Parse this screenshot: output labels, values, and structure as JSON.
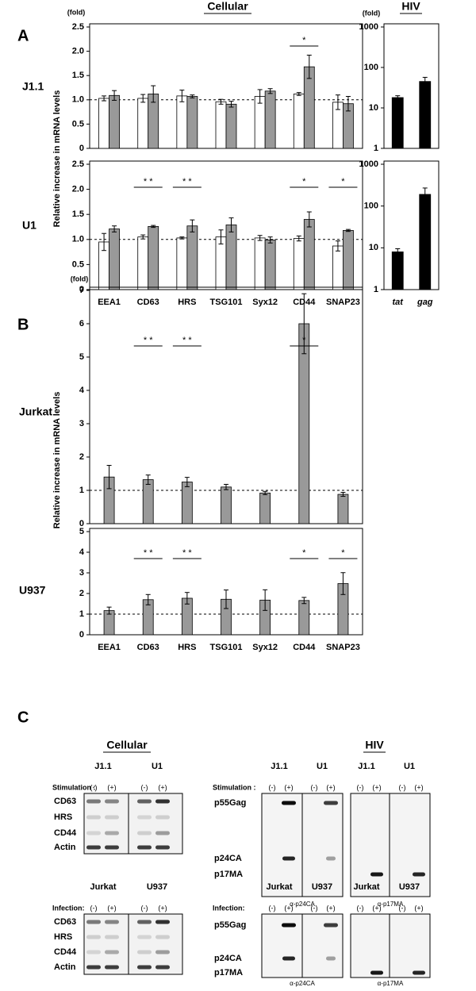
{
  "headers": {
    "cellular": "Cellular",
    "hiv": "HIV"
  },
  "panel_a": {
    "letter": "A",
    "ylabel": "Relative increase in mRNA levels"
  },
  "panel_b": {
    "letter": "B",
    "ylabel": "Relative increase in mRNA levels"
  },
  "chart_data": [
    {
      "type": "bar",
      "row_label": "J1.1",
      "y_unit": "(fold)",
      "categories": [
        null,
        null,
        null,
        null,
        null,
        null,
        null
      ],
      "series": [
        {
          "color": "#ffffff",
          "values": [
            1.03,
            1.03,
            1.08,
            0.96,
            1.07,
            1.12,
            0.95
          ],
          "errors": [
            0.05,
            0.08,
            0.12,
            0.05,
            0.14,
            0.03,
            0.15
          ]
        },
        {
          "color": "#999999",
          "values": [
            1.09,
            1.12,
            1.07,
            0.91,
            1.18,
            1.68,
            0.92
          ],
          "errors": [
            0.1,
            0.17,
            0.03,
            0.06,
            0.05,
            0.24,
            0.15
          ]
        }
      ],
      "ylim": [
        0,
        2.5
      ],
      "yticks": [
        0,
        0.5,
        {
          "value": 1,
          "label": "1.0"
        },
        1.5,
        {
          "value": 2,
          "label": "2.0"
        },
        2.5
      ],
      "reference_line": 1,
      "significance": [
        null,
        null,
        null,
        null,
        null,
        "*",
        null
      ]
    },
    {
      "type": "bar",
      "log_scale": true,
      "y_unit": "(fold)",
      "categories": [
        null,
        null
      ],
      "series": [
        {
          "color": "#000000",
          "values": [
            18,
            45
          ],
          "errors": [
            2,
            12
          ]
        }
      ],
      "ylim": [
        1,
        1000
      ],
      "yticks": [
        1,
        10,
        100,
        1000
      ]
    },
    {
      "type": "bar",
      "row_label": "U1",
      "categories": [
        "EEA1",
        "CD63",
        "HRS",
        "TSG101",
        "Syx12",
        "CD44",
        "SNAP23"
      ],
      "series": [
        {
          "color": "#ffffff",
          "values": [
            0.95,
            1.05,
            1.03,
            1.05,
            1.03,
            1.02,
            0.87
          ],
          "errors": [
            0.17,
            0.04,
            0.02,
            0.14,
            0.05,
            0.05,
            0.1
          ]
        },
        {
          "color": "#999999",
          "values": [
            1.21,
            1.26,
            1.27,
            1.29,
            0.99,
            1.4,
            1.18
          ],
          "errors": [
            0.06,
            0.02,
            0.12,
            0.14,
            0.06,
            0.15,
            0.02
          ]
        }
      ],
      "ylim": [
        0,
        2.5
      ],
      "yticks": [
        0,
        0.5,
        {
          "value": 1,
          "label": "1.0"
        },
        1.5,
        {
          "value": 2,
          "label": "2.0"
        },
        2.5
      ],
      "reference_line": 1,
      "significance": [
        null,
        "* *",
        "* *",
        null,
        null,
        "*",
        "*"
      ]
    },
    {
      "type": "bar",
      "log_scale": true,
      "categories": [
        "tat",
        "gag"
      ],
      "series": [
        {
          "color": "#000000",
          "values": [
            8,
            190
          ],
          "errors": [
            1.5,
            80
          ]
        }
      ],
      "ylim": [
        1,
        1000
      ],
      "yticks": [
        1,
        10,
        100,
        1000
      ]
    },
    {
      "type": "bar",
      "row_label": "Jurkat",
      "y_unit": "(fold)",
      "categories": [
        null,
        null,
        null,
        null,
        null,
        null,
        null
      ],
      "series": [
        {
          "color": "#999999",
          "values": [
            1.4,
            1.32,
            1.25,
            1.1,
            0.92,
            6.0,
            0.88
          ],
          "errors": [
            0.35,
            0.14,
            0.14,
            0.08,
            0.05,
            0.9,
            0.06
          ]
        }
      ],
      "ylim": [
        0,
        7
      ],
      "yticks": [
        0,
        1,
        2,
        3,
        4,
        5,
        6,
        7
      ],
      "reference_line": 1,
      "significance": [
        null,
        "* *",
        "* *",
        null,
        null,
        "*",
        null
      ]
    },
    {
      "type": "bar",
      "row_label": "U937",
      "categories": [
        "EEA1",
        "CD63",
        "HRS",
        "TSG101",
        "Syx12",
        "CD44",
        "SNAP23"
      ],
      "series": [
        {
          "color": "#999999",
          "values": [
            1.17,
            1.7,
            1.77,
            1.72,
            1.68,
            1.66,
            2.48
          ],
          "errors": [
            0.17,
            0.25,
            0.28,
            0.45,
            0.5,
            0.15,
            0.53
          ]
        }
      ],
      "ylim": [
        0,
        5
      ],
      "yticks": [
        0,
        1,
        2,
        3,
        4,
        5
      ],
      "reference_line": 1,
      "significance": [
        null,
        "* *",
        "* *",
        null,
        null,
        "*",
        "*"
      ]
    }
  ],
  "panel_c": {
    "letter": "C",
    "cellular": {
      "title": "Cellular",
      "groups": [
        {
          "cells": [
            "J1.1",
            "U1"
          ],
          "condition": "Stimulation :",
          "lanes": [
            "(-)",
            "(+)",
            "(-)",
            "(+)"
          ],
          "rows": [
            "CD63",
            "HRS",
            "CD44",
            "Actin"
          ]
        },
        {
          "cells": [
            "Jurkat",
            "U937"
          ],
          "condition": "Infection:",
          "lanes": [
            "(-)",
            "(+)",
            "(-)",
            "(+)"
          ],
          "rows": [
            "CD63",
            "HRS",
            "CD44",
            "Actin"
          ]
        }
      ]
    },
    "hiv": {
      "title": "HIV",
      "groups": [
        {
          "cells": [
            "J1.1",
            "U1",
            "J1.1",
            "U1"
          ],
          "condition": "Stimulation :",
          "lanes": [
            "(-)",
            "(+)",
            "(-)",
            "(+)",
            "(-)",
            "(+)",
            "(-)",
            "(+)"
          ],
          "bands": [
            "p55Gag",
            "p24CA",
            "p17MA"
          ],
          "antibodies": [
            "α-p24CA",
            "α-p17MA"
          ]
        },
        {
          "cells": [
            "Jurkat",
            "U937",
            "Jurkat",
            "U937"
          ],
          "condition": "Infection:",
          "lanes": [
            "(-)",
            "(+)",
            "(-)",
            "(+)",
            "(-)",
            "(+)",
            "(-)",
            "(+)"
          ],
          "bands": [
            "p55Gag",
            "p24CA",
            "p17MA"
          ],
          "antibodies": [
            "α-p24CA",
            "α-p17MA"
          ]
        }
      ]
    }
  }
}
